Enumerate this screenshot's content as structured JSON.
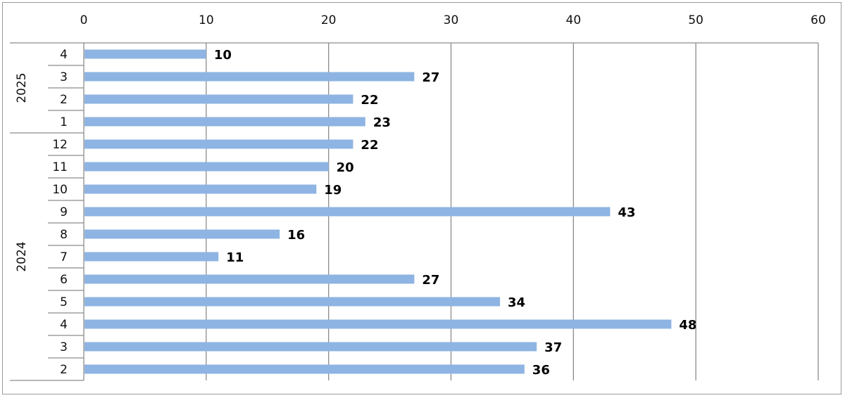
{
  "chart_data": {
    "type": "bar",
    "orientation": "horizontal",
    "title": "",
    "xlabel": "",
    "ylabel": "",
    "xlim": [
      0,
      60
    ],
    "x_ticks": [
      0,
      10,
      20,
      30,
      40,
      50,
      60
    ],
    "x_tick_labels": [
      "0",
      "10",
      "20",
      "30",
      "40",
      "50",
      "60"
    ],
    "x_axis_position": "top",
    "grid": true,
    "legend": "none",
    "bar_color": "#8eb4e3",
    "groups": [
      {
        "label": "2025",
        "categories": [
          {
            "label": "4",
            "value": 10,
            "value_label": "10"
          },
          {
            "label": "3",
            "value": 27,
            "value_label": "27"
          },
          {
            "label": "2",
            "value": 22,
            "value_label": "22"
          },
          {
            "label": "1",
            "value": 23,
            "value_label": "23"
          }
        ]
      },
      {
        "label": "2024",
        "categories": [
          {
            "label": "12",
            "value": 22,
            "value_label": "22"
          },
          {
            "label": "11",
            "value": 20,
            "value_label": "20"
          },
          {
            "label": "10",
            "value": 19,
            "value_label": "19"
          },
          {
            "label": "9",
            "value": 43,
            "value_label": "43"
          },
          {
            "label": "8",
            "value": 16,
            "value_label": "16"
          },
          {
            "label": "7",
            "value": 11,
            "value_label": "11"
          },
          {
            "label": "6",
            "value": 27,
            "value_label": "27"
          },
          {
            "label": "5",
            "value": 34,
            "value_label": "34"
          },
          {
            "label": "4",
            "value": 48,
            "value_label": "48"
          },
          {
            "label": "3",
            "value": 37,
            "value_label": "37"
          },
          {
            "label": "2",
            "value": 36,
            "value_label": "36"
          }
        ]
      }
    ]
  }
}
